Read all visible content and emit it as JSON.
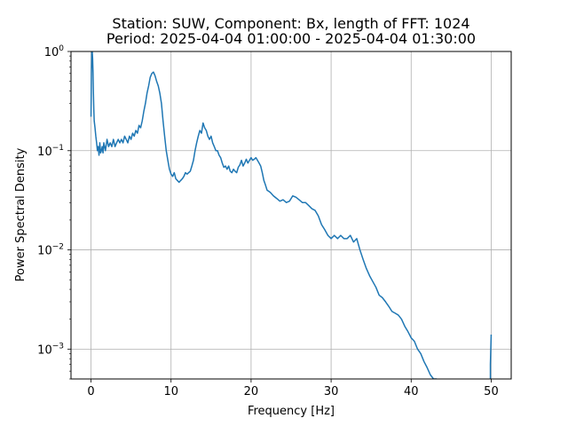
{
  "chart_data": {
    "type": "line",
    "title_line1": "Station: SUW, Component: Bx, length of FFT: 1024",
    "title_line2": "Period: 2025-04-04 01:00:00 - 2025-04-04 01:30:00",
    "xlabel": "Frequency [Hz]",
    "ylabel": "Power Spectral Density",
    "xlim": [
      -2.5,
      52.5
    ],
    "ylim": [
      0.0005,
      1
    ],
    "yscale": "log",
    "grid": true,
    "xticks": [
      0,
      10,
      20,
      30,
      40,
      50
    ],
    "xtick_labels": [
      "0",
      "10",
      "20",
      "30",
      "40",
      "50"
    ],
    "yticks": [
      0.001,
      0.01,
      0.1,
      1
    ],
    "ytick_labels": [
      {
        "base": "10",
        "exp": "−3"
      },
      {
        "base": "10",
        "exp": "−2"
      },
      {
        "base": "10",
        "exp": "−1"
      },
      {
        "base": "10",
        "exp": "0"
      }
    ],
    "line_color": "#1f77b4",
    "series": [
      {
        "x": [
          0.0,
          0.05,
          0.1,
          0.15,
          0.2,
          0.25,
          0.3,
          0.35,
          0.4,
          0.5,
          0.6,
          0.7,
          0.8,
          0.9,
          1.0,
          1.1,
          1.2,
          1.3,
          1.4,
          1.5,
          1.6,
          1.8,
          2.0,
          2.2,
          2.4,
          2.6,
          2.8,
          3.0,
          3.2,
          3.4,
          3.6,
          3.8,
          4.0,
          4.2,
          4.4,
          4.6,
          4.8,
          5.0,
          5.2,
          5.4,
          5.6,
          5.8,
          6.0,
          6.2,
          6.4,
          6.6,
          6.8,
          7.0,
          7.2,
          7.4,
          7.6,
          7.8,
          8.0,
          8.2,
          8.4,
          8.6,
          8.8,
          9.0,
          9.2,
          9.4,
          9.6,
          9.8,
          10.0,
          10.2,
          10.4,
          10.6,
          10.8,
          11.0,
          11.2,
          11.4,
          11.6,
          11.8,
          12.0,
          12.2,
          12.4,
          12.6,
          12.8,
          13.0,
          13.2,
          13.4,
          13.6,
          13.8,
          14.0,
          14.2,
          14.4,
          14.6,
          14.8,
          15.0,
          15.2,
          15.4,
          15.6,
          15.8,
          16.0,
          16.2,
          16.4,
          16.6,
          16.8,
          17.0,
          17.2,
          17.4,
          17.6,
          17.8,
          18.0,
          18.2,
          18.4,
          18.6,
          18.8,
          19.0,
          19.2,
          19.4,
          19.6,
          19.8,
          20.0,
          20.2,
          20.4,
          20.6,
          20.8,
          21.0,
          21.2,
          21.4,
          21.6,
          21.8,
          22.0,
          22.4,
          22.8,
          23.2,
          23.6,
          24.0,
          24.4,
          24.8,
          25.2,
          25.6,
          26.0,
          26.4,
          26.8,
          27.2,
          27.6,
          28.0,
          28.4,
          28.8,
          29.2,
          29.6,
          30.0,
          30.4,
          30.8,
          31.2,
          31.6,
          32.0,
          32.4,
          32.8,
          33.2,
          33.6,
          34.0,
          34.4,
          34.8,
          35.2,
          35.6,
          36.0,
          36.4,
          36.8,
          37.2,
          37.6,
          38.0,
          38.4,
          38.8,
          39.2,
          39.6,
          40.0,
          40.4,
          40.8,
          41.2,
          41.6,
          42.0,
          42.4,
          42.8,
          43.2
        ],
        "y": [
          0.22,
          0.6,
          1.0,
          1.0,
          0.85,
          0.62,
          0.38,
          0.26,
          0.2,
          0.17,
          0.14,
          0.12,
          0.1,
          0.11,
          0.09,
          0.12,
          0.095,
          0.1,
          0.11,
          0.095,
          0.12,
          0.1,
          0.13,
          0.11,
          0.12,
          0.11,
          0.13,
          0.11,
          0.12,
          0.13,
          0.12,
          0.13,
          0.12,
          0.14,
          0.13,
          0.12,
          0.14,
          0.13,
          0.15,
          0.14,
          0.16,
          0.15,
          0.18,
          0.17,
          0.2,
          0.25,
          0.3,
          0.38,
          0.45,
          0.55,
          0.6,
          0.62,
          0.57,
          0.5,
          0.45,
          0.38,
          0.3,
          0.2,
          0.14,
          0.1,
          0.08,
          0.065,
          0.058,
          0.055,
          0.06,
          0.052,
          0.05,
          0.048,
          0.05,
          0.052,
          0.055,
          0.06,
          0.058,
          0.06,
          0.062,
          0.07,
          0.08,
          0.1,
          0.12,
          0.14,
          0.16,
          0.15,
          0.19,
          0.17,
          0.16,
          0.14,
          0.13,
          0.14,
          0.12,
          0.11,
          0.1,
          0.1,
          0.09,
          0.085,
          0.075,
          0.068,
          0.07,
          0.065,
          0.07,
          0.062,
          0.06,
          0.065,
          0.062,
          0.06,
          0.068,
          0.072,
          0.08,
          0.07,
          0.075,
          0.082,
          0.075,
          0.08,
          0.085,
          0.08,
          0.082,
          0.085,
          0.08,
          0.075,
          0.07,
          0.06,
          0.05,
          0.045,
          0.04,
          0.038,
          0.035,
          0.033,
          0.031,
          0.032,
          0.03,
          0.031,
          0.035,
          0.034,
          0.032,
          0.03,
          0.03,
          0.028,
          0.026,
          0.025,
          0.022,
          0.018,
          0.016,
          0.014,
          0.013,
          0.014,
          0.013,
          0.014,
          0.013,
          0.013,
          0.014,
          0.012,
          0.013,
          0.01,
          0.008,
          0.0065,
          0.0055,
          0.0048,
          0.0042,
          0.0035,
          0.0033,
          0.003,
          0.0027,
          0.0024,
          0.0023,
          0.0022,
          0.002,
          0.0017,
          0.0015,
          0.0013,
          0.0012,
          0.001,
          0.0009,
          0.00075,
          0.00065,
          0.00055,
          0.0005,
          0.0005
        ]
      },
      {
        "x": [
          49.9,
          49.9,
          50.0
        ],
        "y": [
          0.0005,
          0.0007,
          0.0014
        ]
      }
    ]
  }
}
